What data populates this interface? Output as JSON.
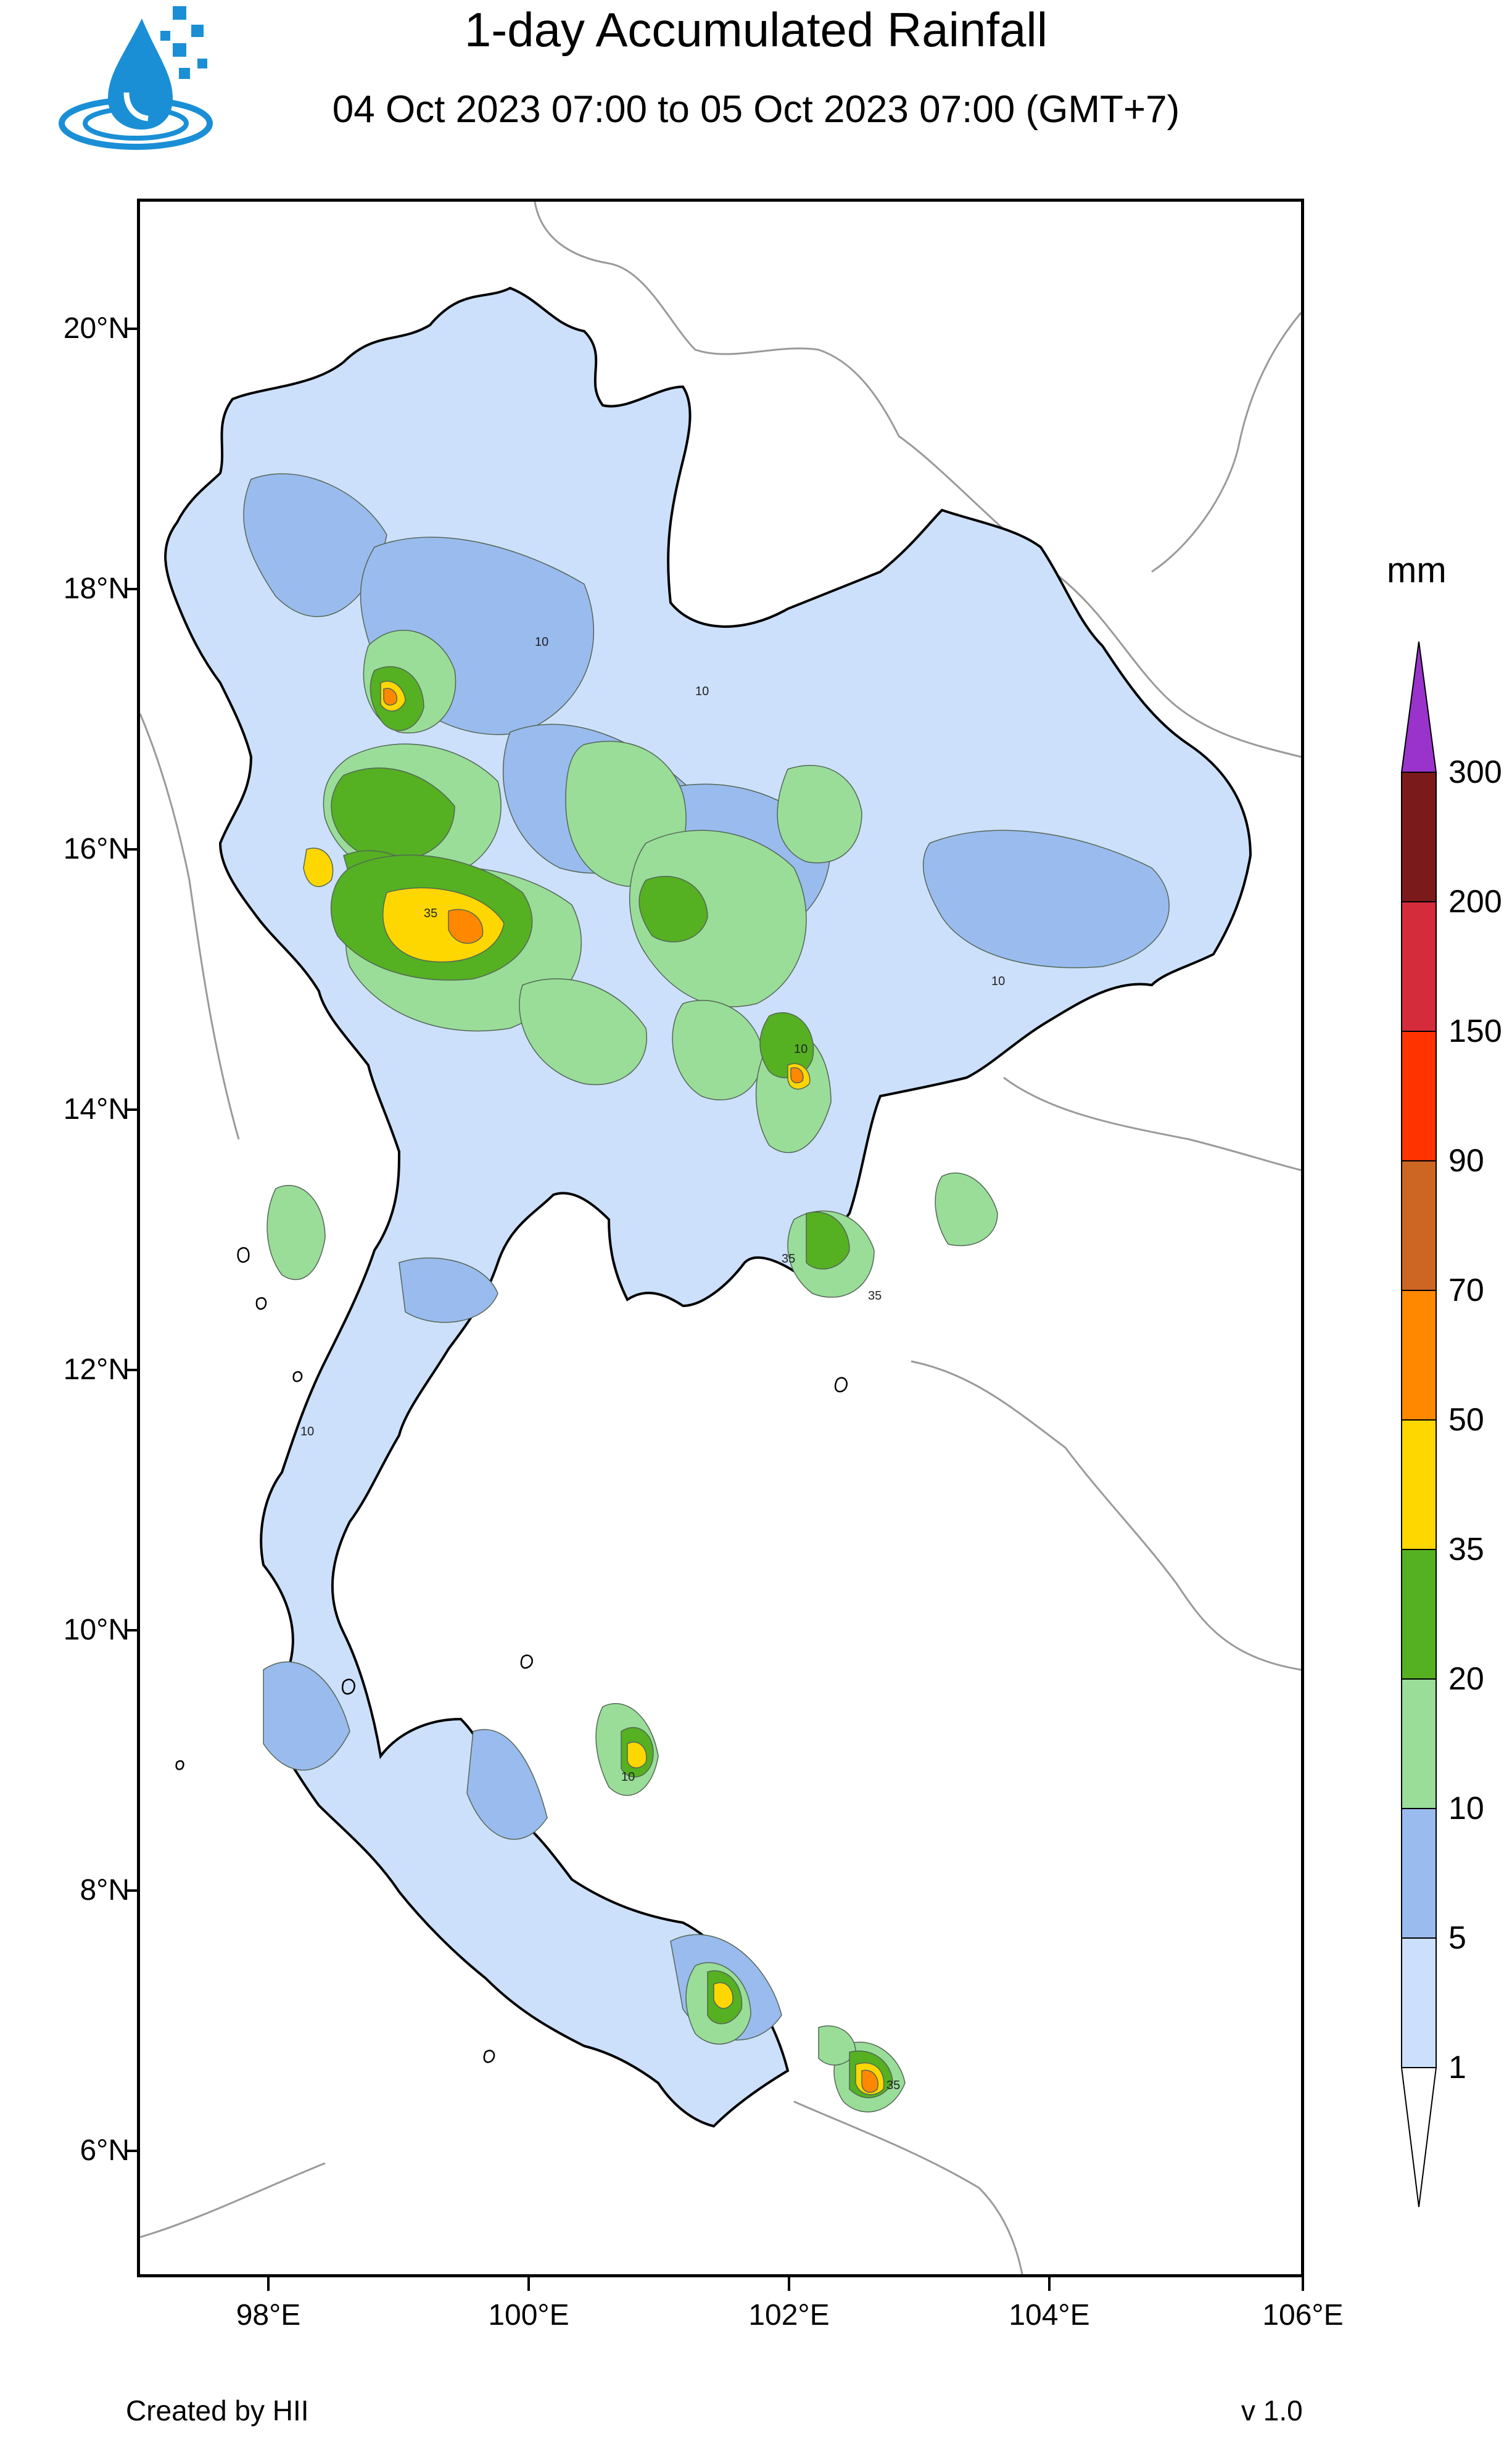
{
  "header": {
    "title": "1-day Accumulated Rainfall",
    "subtitle": "04 Oct 2023 07:00 to 05 Oct 2023 07:00 (GMT+7)"
  },
  "map": {
    "latitude_labels": [
      "20°N",
      "18°N",
      "16°N",
      "14°N",
      "12°N",
      "10°N",
      "8°N",
      "6°N"
    ],
    "longitude_labels": [
      "98°E",
      "100°E",
      "102°E",
      "104°E",
      "106°E"
    ],
    "contour_labels": [
      "10",
      "10",
      "10",
      "10",
      "35",
      "35",
      "35",
      "10",
      "35",
      "10"
    ]
  },
  "legend": {
    "unit": "mm",
    "levels": [
      "300",
      "200",
      "150",
      "90",
      "70",
      "50",
      "35",
      "20",
      "10",
      "5",
      "1"
    ],
    "colors": {
      "above_300": "#9933cc",
      "200_300": "#7b1a1a",
      "150_200": "#d42c3a",
      "90_150": "#ff3300",
      "70_90": "#cc6622",
      "50_70": "#ff8800",
      "35_50": "#ffd700",
      "20_35": "#55b022",
      "10_20": "#99dd99",
      "5_10": "#99bbee",
      "1_5": "#cce0fb",
      "below_1": "#ffffff"
    }
  },
  "footer": {
    "credit": "Created by HII",
    "version": "v 1.0"
  }
}
